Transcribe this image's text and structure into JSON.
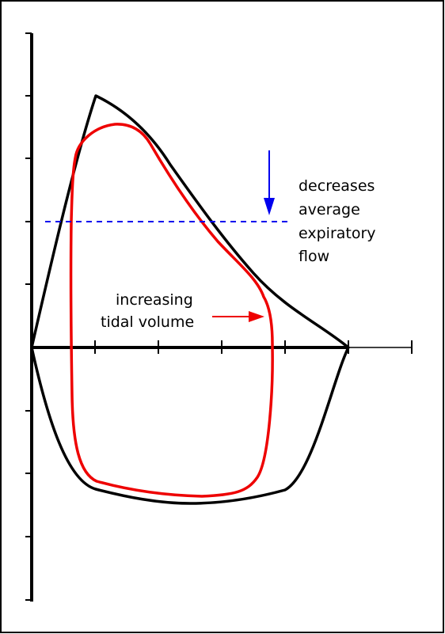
{
  "annotations": {
    "flow_note": [
      "decreases",
      "average",
      "expiratory",
      "flow"
    ],
    "volume_note": [
      "increasing",
      "tidal volume"
    ]
  },
  "colors": {
    "axis": "#000000",
    "baseline_loop": "#000000",
    "increased_tv_loop": "#ee0000",
    "flow_marker": "#0000ee",
    "frame": "#000000"
  },
  "icons": {
    "flow_arrow": "arrow-down-icon",
    "volume_arrow": "arrow-right-icon"
  }
}
